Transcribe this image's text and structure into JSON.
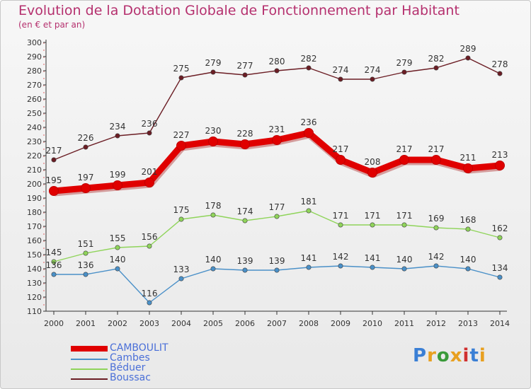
{
  "header": {
    "title": "Evolution de la Dotation Globale de Fonctionnement par Habitant",
    "subtitle": "(en € et par an)"
  },
  "logo": {
    "text": "Proxiti",
    "colors": [
      "#3a7fd5",
      "#e8a020",
      "#3a9a3a",
      "#e8a020",
      "#d03030",
      "#3a7fd5",
      "#e8a020"
    ]
  },
  "chart_data": {
    "type": "line",
    "title": "Evolution de la Dotation Globale de Fonctionnement par Habitant",
    "subtitle": "(en € et par an)",
    "xlabel": "",
    "ylabel": "",
    "ylim": [
      110,
      300
    ],
    "yticks": [
      110,
      120,
      130,
      140,
      150,
      160,
      170,
      180,
      190,
      200,
      210,
      220,
      230,
      240,
      250,
      260,
      270,
      280,
      290,
      300
    ],
    "grid": false,
    "legend_position": "bottom-left",
    "x": [
      "2000",
      "2001",
      "2002",
      "2003",
      "2004",
      "2005",
      "2006",
      "2007",
      "2008",
      "2009",
      "2010",
      "2011",
      "2012",
      "2013",
      "2014"
    ],
    "series": [
      {
        "name": "CAMBOULIT",
        "color": "#e00000",
        "emphasis": true,
        "values": [
          195,
          197,
          199,
          201,
          227,
          230,
          228,
          231,
          236,
          217,
          208,
          217,
          217,
          211,
          213
        ]
      },
      {
        "name": "Cambes",
        "color": "#4a90c8",
        "emphasis": false,
        "values": [
          136,
          136,
          140,
          116,
          133,
          140,
          139,
          139,
          141,
          142,
          141,
          140,
          142,
          140,
          134
        ]
      },
      {
        "name": "Béduer",
        "color": "#8fd45a",
        "emphasis": false,
        "values": [
          145,
          151,
          155,
          156,
          175,
          178,
          174,
          177,
          181,
          171,
          171,
          171,
          169,
          168,
          162
        ]
      },
      {
        "name": "Boussac",
        "color": "#6b1d24",
        "emphasis": false,
        "values": [
          217,
          226,
          234,
          236,
          275,
          279,
          277,
          280,
          282,
          274,
          274,
          279,
          282,
          289,
          278
        ]
      }
    ]
  }
}
